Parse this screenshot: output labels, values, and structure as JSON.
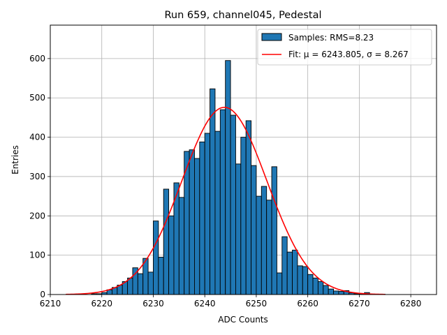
{
  "chart_data": {
    "type": "bar",
    "title": "Run 659, channel045, Pedestal",
    "xlabel": "ADC Counts",
    "ylabel": "Entries",
    "xlim": [
      6210,
      6285
    ],
    "ylim": [
      0,
      685
    ],
    "xticks": [
      6210,
      6220,
      6230,
      6240,
      6250,
      6260,
      6270,
      6280
    ],
    "yticks": [
      0,
      100,
      200,
      300,
      400,
      500,
      600
    ],
    "grid": true,
    "legend_position": "top-right",
    "bar_color": "#1f77b4",
    "fit_color": "#ff0000",
    "histogram": {
      "name": "Samples: RMS=8.23",
      "bin_width": 1,
      "bin_starts": [
        6218,
        6219,
        6220,
        6221,
        6222,
        6223,
        6224,
        6225,
        6226,
        6227,
        6228,
        6229,
        6230,
        6231,
        6232,
        6233,
        6234,
        6235,
        6236,
        6237,
        6238,
        6239,
        6240,
        6241,
        6242,
        6243,
        6244,
        6245,
        6246,
        6247,
        6248,
        6249,
        6250,
        6251,
        6252,
        6253,
        6254,
        6255,
        6256,
        6257,
        6258,
        6259,
        6260,
        6261,
        6262,
        6263,
        6264,
        6265,
        6266,
        6267,
        6268,
        6269,
        6270,
        6271,
        6272,
        6273,
        6274
      ],
      "counts": [
        2,
        2,
        5,
        12,
        18,
        24,
        33,
        42,
        68,
        53,
        92,
        57,
        187,
        95,
        268,
        200,
        284,
        247,
        364,
        368,
        346,
        388,
        410,
        523,
        415,
        470,
        595,
        456,
        332,
        400,
        442,
        328,
        250,
        275,
        240,
        325,
        55,
        147,
        108,
        113,
        73,
        71,
        51,
        42,
        33,
        23,
        14,
        9,
        8,
        10,
        4,
        2,
        2,
        5,
        1,
        1,
        1
      ]
    },
    "fit": {
      "name": "Fit: μ = 6243.805, σ = 8.267",
      "mu": 6243.805,
      "sigma": 8.267,
      "amplitude": 476,
      "x_range": [
        6213,
        6275
      ]
    }
  }
}
